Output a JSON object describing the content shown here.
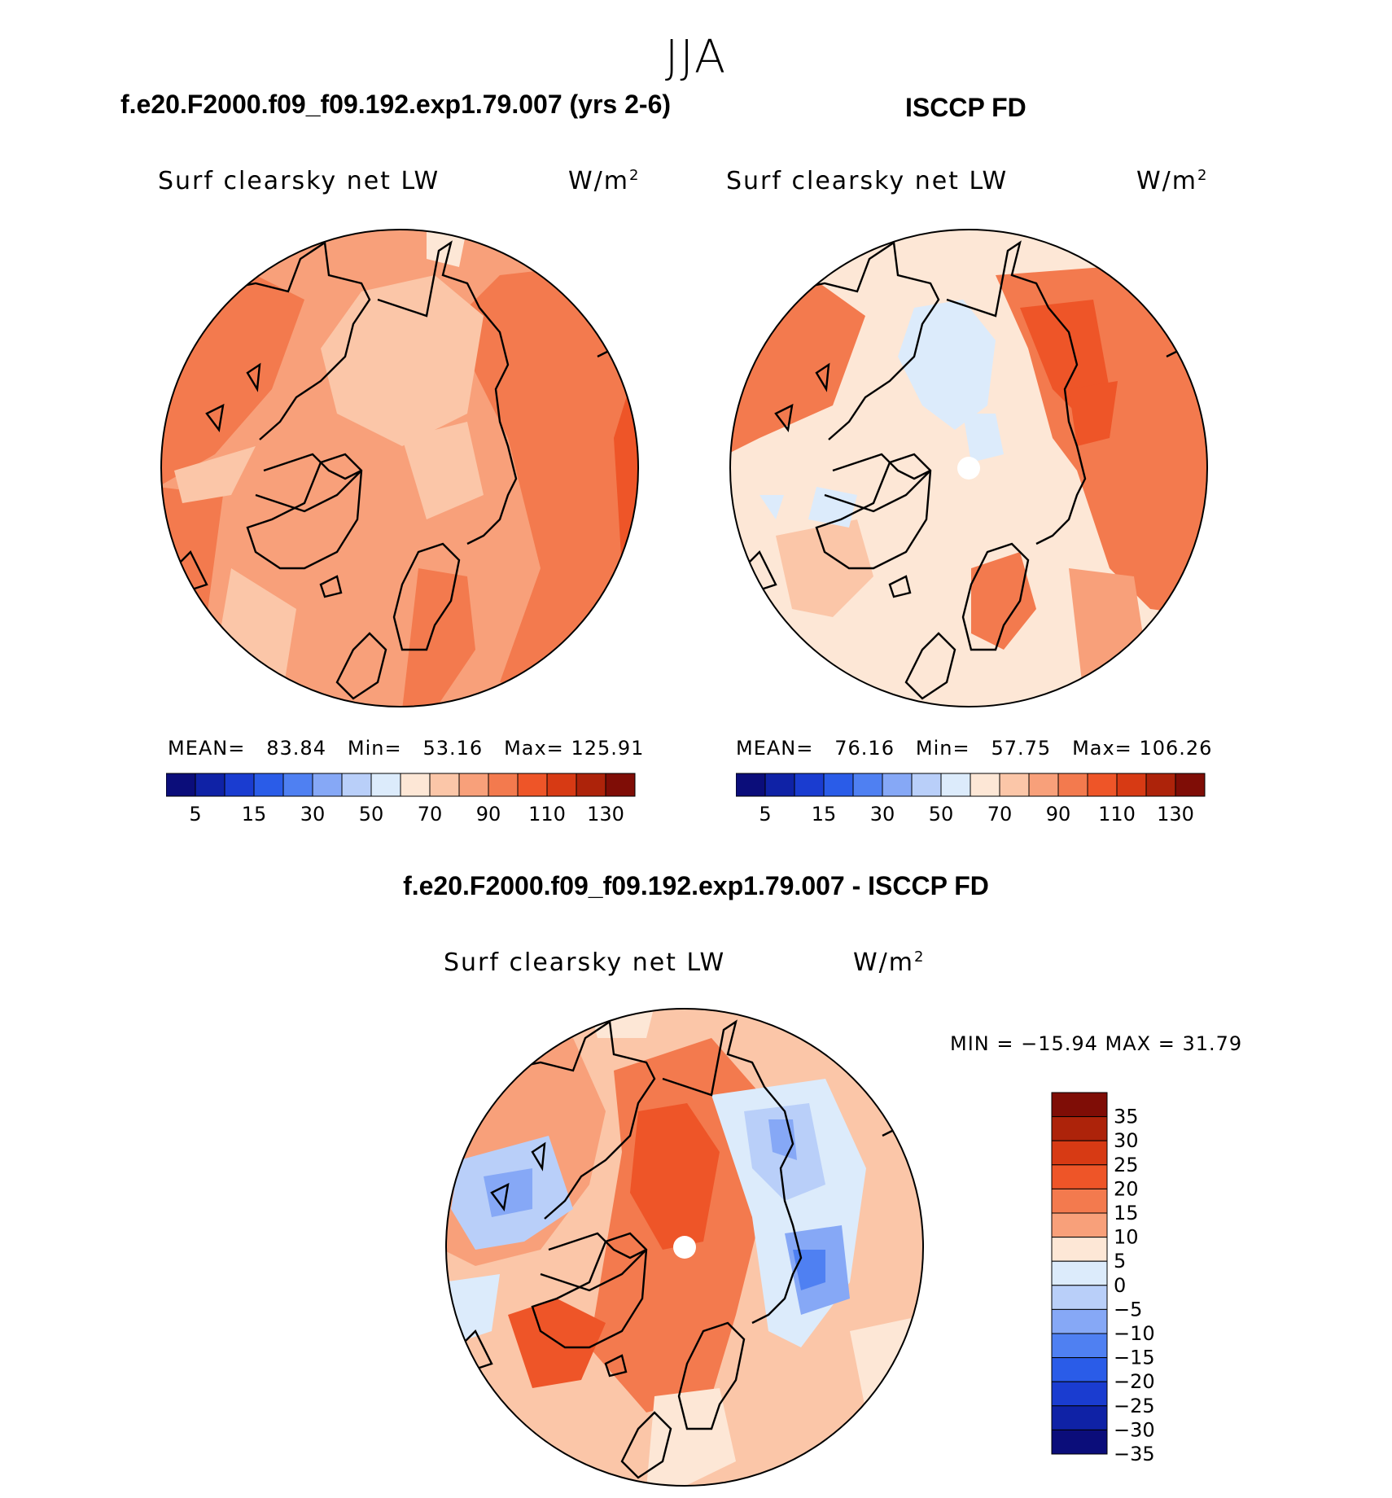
{
  "season": "JJA",
  "panels": [
    {
      "title": "f.e20.F2000.f09_f09.192.exp1.79.007 (yrs 2-6)",
      "variable": "Surf clearsky net LW",
      "units": "W/m",
      "units_exp": "2",
      "stats": {
        "mean_label": "MEAN=",
        "mean": "83.84",
        "min_label": "Min=",
        "min": "53.16",
        "max_label": "Max=",
        "max": "125.91"
      }
    },
    {
      "title": "ISCCP FD",
      "variable": "Surf clearsky net LW",
      "units": "W/m",
      "units_exp": "2",
      "stats": {
        "mean_label": "MEAN=",
        "mean": "76.16",
        "min_label": "Min=",
        "min": "57.75",
        "max_label": "Max=",
        "max": "106.26"
      }
    }
  ],
  "difference": {
    "title": "f.e20.F2000.f09_f09.192.exp1.79.007 - ISCCP FD",
    "variable": "Surf clearsky net LW",
    "units": "W/m",
    "units_exp": "2",
    "minmax": "MIN = −15.94 MAX =   31.79"
  },
  "colorbar_abs": {
    "colors": [
      "#0b0d7a",
      "#0f22a6",
      "#1a3cd0",
      "#2a5ce8",
      "#4f80f2",
      "#86a8f6",
      "#b9cff9",
      "#dcebfb",
      "#fde7d6",
      "#fbc6a8",
      "#f8a07a",
      "#f37a4e",
      "#ee5528",
      "#d73a14",
      "#ad230a",
      "#7f0d06"
    ],
    "ticks": [
      "5",
      "15",
      "30",
      "50",
      "70",
      "90",
      "110",
      "130"
    ],
    "tick_after_box": [
      1,
      3,
      5,
      7,
      9,
      11,
      13,
      15
    ]
  },
  "colorbar_diff": {
    "colors": [
      "#7f0d06",
      "#ad230a",
      "#d73a14",
      "#ee5528",
      "#f37a4e",
      "#f8a07a",
      "#fde7d6",
      "#dcebfb",
      "#b9cff9",
      "#86a8f6",
      "#4f80f2",
      "#2a5ce8",
      "#1a3cd0",
      "#0f22a6",
      "#0b0d7a"
    ],
    "ticks": [
      "35",
      "30",
      "25",
      "20",
      "15",
      "10",
      "5",
      "0",
      "−5",
      "−10",
      "−15",
      "−20",
      "−25",
      "−30",
      "−35"
    ]
  },
  "chart_data": [
    {
      "type": "heatmap",
      "projection": "north polar stereographic",
      "title": "f.e20.F2000.f09_f09.192.exp1.79.007 (yrs 2-6)",
      "variable": "Surf clearsky net LW",
      "units": "W/m2",
      "levels": [
        5,
        10,
        15,
        20,
        30,
        40,
        50,
        60,
        70,
        80,
        90,
        100,
        110,
        120,
        130
      ],
      "mean": 83.84,
      "min": 53.16,
      "max": 125.91
    },
    {
      "type": "heatmap",
      "projection": "north polar stereographic",
      "title": "ISCCP FD",
      "variable": "Surf clearsky net LW",
      "units": "W/m2",
      "levels": [
        5,
        10,
        15,
        20,
        30,
        40,
        50,
        60,
        70,
        80,
        90,
        100,
        110,
        120,
        130
      ],
      "mean": 76.16,
      "min": 57.75,
      "max": 106.26
    },
    {
      "type": "heatmap",
      "projection": "north polar stereographic",
      "title": "f.e20.F2000.f09_f09.192.exp1.79.007 - ISCCP FD",
      "variable": "Surf clearsky net LW",
      "units": "W/m2",
      "levels": [
        -35,
        -30,
        -25,
        -20,
        -15,
        -10,
        -5,
        0,
        5,
        10,
        15,
        20,
        25,
        30,
        35
      ],
      "min": -15.94,
      "max": 31.79
    }
  ]
}
